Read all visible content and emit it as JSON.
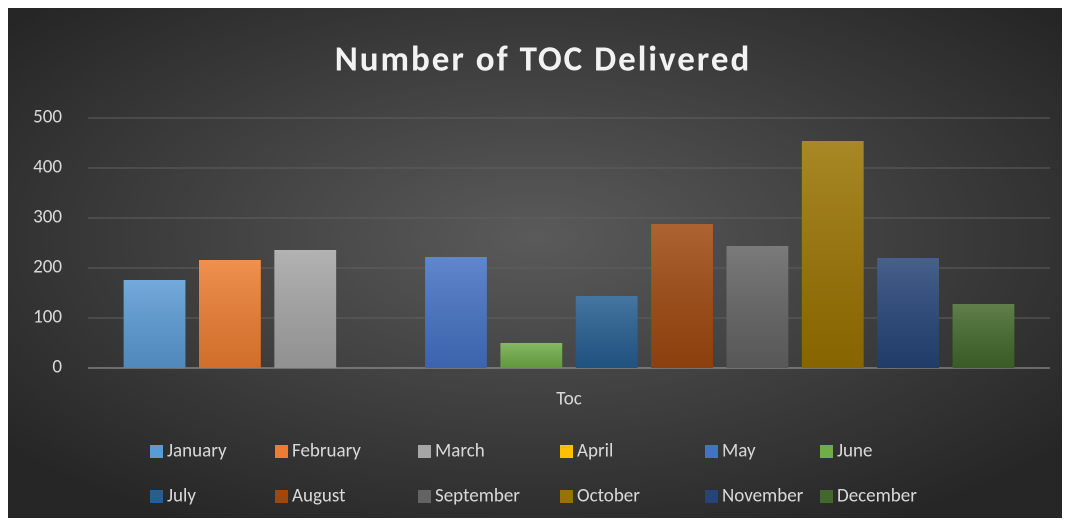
{
  "chart_data": {
    "type": "bar",
    "title": "Number of TOC Delivered",
    "categories": [
      "Toc"
    ],
    "series": [
      {
        "name": "January",
        "color": "#5b9bd5",
        "values": [
          176
        ]
      },
      {
        "name": "February",
        "color": "#ed7d31",
        "values": [
          216
        ]
      },
      {
        "name": "March",
        "color": "#a5a5a5",
        "values": [
          236
        ]
      },
      {
        "name": "April",
        "color": "#ffc000",
        "values": [
          0
        ]
      },
      {
        "name": "May",
        "color": "#4472c4",
        "values": [
          222
        ]
      },
      {
        "name": "June",
        "color": "#70ad47",
        "values": [
          50
        ]
      },
      {
        "name": "July",
        "color": "#255e91",
        "values": [
          144
        ]
      },
      {
        "name": "August",
        "color": "#9e480e",
        "values": [
          288
        ]
      },
      {
        "name": "September",
        "color": "#636363",
        "values": [
          244
        ]
      },
      {
        "name": "October",
        "color": "#997300",
        "values": [
          454
        ]
      },
      {
        "name": "November",
        "color": "#264478",
        "values": [
          220
        ]
      },
      {
        "name": "December",
        "color": "#43682b",
        "values": [
          128
        ]
      }
    ],
    "ylim": [
      0,
      500
    ],
    "yticks": [
      0,
      100,
      200,
      300,
      400,
      500
    ],
    "grid": true,
    "legend": "bottom"
  }
}
